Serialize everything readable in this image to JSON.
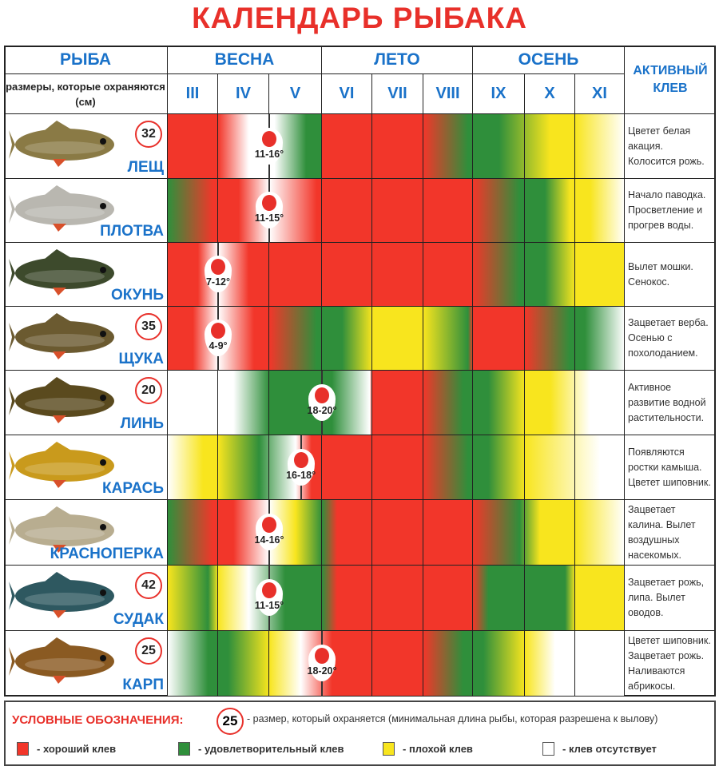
{
  "title": "КАЛЕНДАРЬ РЫБАКА",
  "header": {
    "fish_label": "РЫБА",
    "size_note": "размеры, которые охраняются (см)",
    "seasons": [
      "ВЕСНА",
      "ЛЕТО",
      "ОСЕНЬ"
    ],
    "active_label": "АКТИВНЫЙ КЛЕВ"
  },
  "colors": {
    "R": "#f2362a",
    "G": "#2f8f3b",
    "Y": "#f8e51e",
    "W": "#ffffff",
    "accent": "#e8302a",
    "blue": "#1a72c9"
  },
  "chart_data": {
    "type": "heatmap",
    "title": "КАЛЕНДАРЬ РЫБАКА",
    "months": [
      "III",
      "IV",
      "V",
      "VI",
      "VII",
      "VIII",
      "IX",
      "X",
      "XI"
    ],
    "legend_codes": {
      "R": "хороший клев",
      "G": "удовлетворительный клев",
      "Y": "плохой клев",
      "W": "клев отсутствует"
    },
    "rows": [
      {
        "fish": "ЛЕЩ",
        "limit": "32",
        "color": "#8a7a45",
        "temp": "11-16°",
        "temp_month": 2.0,
        "note": "Цветет белая акация. Колосится рожь.",
        "stops": [
          [
            0,
            "R"
          ],
          [
            1,
            "R"
          ],
          [
            1.6,
            "W"
          ],
          [
            2.1,
            "W"
          ],
          [
            2.7,
            "G"
          ],
          [
            3,
            "G"
          ],
          [
            3,
            "R"
          ],
          [
            5,
            "R"
          ],
          [
            5.9,
            "G"
          ],
          [
            6.5,
            "G"
          ],
          [
            7.5,
            "Y"
          ],
          [
            8,
            "Y"
          ],
          [
            9,
            "W"
          ]
        ]
      },
      {
        "fish": "ПЛОТВА",
        "limit": "",
        "color": "#b9b7b0",
        "temp": "11-15°",
        "temp_month": 2.0,
        "note": "Начало паводка. Просветление и прогрев воды.",
        "stops": [
          [
            0,
            "G"
          ],
          [
            0.9,
            "R"
          ],
          [
            1.4,
            "R"
          ],
          [
            2,
            "W"
          ],
          [
            2.9,
            "R"
          ],
          [
            6,
            "R"
          ],
          [
            6.9,
            "G"
          ],
          [
            7.4,
            "G"
          ],
          [
            7.9,
            "Y"
          ],
          [
            8.3,
            "Y"
          ],
          [
            9,
            "W"
          ]
        ]
      },
      {
        "fish": "ОКУНЬ",
        "limit": "",
        "color": "#3d4a2c",
        "temp": "7-12°",
        "temp_month": 1.0,
        "note": "Вылет мошки. Сенокос.",
        "stops": [
          [
            0,
            "R"
          ],
          [
            0.6,
            "R"
          ],
          [
            1,
            "W"
          ],
          [
            1.6,
            "R"
          ],
          [
            6,
            "R"
          ],
          [
            6.9,
            "G"
          ],
          [
            7.4,
            "G"
          ],
          [
            8,
            "Y"
          ],
          [
            9,
            "Y"
          ]
        ]
      },
      {
        "fish": "ЩУКА",
        "limit": "35",
        "color": "#6b5a30",
        "temp": "4-9°",
        "temp_month": 1.0,
        "note": "Зацветает верба. Осенью с похолоданием.",
        "stops": [
          [
            0,
            "R"
          ],
          [
            0.5,
            "R"
          ],
          [
            1,
            "W"
          ],
          [
            1.7,
            "R"
          ],
          [
            2,
            "R"
          ],
          [
            2.9,
            "G"
          ],
          [
            3.4,
            "G"
          ],
          [
            4,
            "Y"
          ],
          [
            5,
            "Y"
          ],
          [
            5.9,
            "G"
          ],
          [
            6,
            "R"
          ],
          [
            7,
            "R"
          ],
          [
            7.9,
            "G"
          ],
          [
            8.2,
            "G"
          ],
          [
            9,
            "W"
          ]
        ]
      },
      {
        "fish": "ЛИНЬ",
        "limit": "20",
        "color": "#5a4a1e",
        "temp": "18-20°",
        "temp_month": 3.0,
        "note": "Активное развитие водной растительности.",
        "stops": [
          [
            0,
            "W"
          ],
          [
            1.3,
            "W"
          ],
          [
            2,
            "G"
          ],
          [
            3.2,
            "G"
          ],
          [
            3.95,
            "W"
          ],
          [
            4,
            "R"
          ],
          [
            5,
            "R"
          ],
          [
            5.8,
            "G"
          ],
          [
            6.3,
            "G"
          ],
          [
            7,
            "Y"
          ],
          [
            7.5,
            "Y"
          ],
          [
            8.3,
            "W"
          ],
          [
            9,
            "W"
          ]
        ]
      },
      {
        "fish": "КАРАСЬ",
        "limit": "",
        "color": "#c99a1c",
        "temp": "16-18°",
        "temp_month": 2.6,
        "note": "Появляются ростки камыша. Цветет шиповник.",
        "stops": [
          [
            0,
            "W"
          ],
          [
            0.7,
            "Y"
          ],
          [
            1,
            "Y"
          ],
          [
            1.8,
            "G"
          ],
          [
            2.5,
            "W"
          ],
          [
            2.8,
            "R"
          ],
          [
            5,
            "R"
          ],
          [
            5.9,
            "G"
          ],
          [
            6.3,
            "G"
          ],
          [
            7,
            "Y"
          ],
          [
            8.5,
            "W"
          ],
          [
            9,
            "W"
          ]
        ]
      },
      {
        "fish": "КРАСНОПЕРКА",
        "limit": "",
        "color": "#b8ad90",
        "temp": "14-16°",
        "temp_month": 2.0,
        "note": "Зацветает калина. Вылет воздушных насекомых.",
        "stops": [
          [
            0,
            "G"
          ],
          [
            0.9,
            "R"
          ],
          [
            1.3,
            "R"
          ],
          [
            2,
            "W"
          ],
          [
            2.5,
            "Y"
          ],
          [
            3,
            "G"
          ],
          [
            3.3,
            "R"
          ],
          [
            6,
            "R"
          ],
          [
            6.9,
            "G"
          ],
          [
            7.3,
            "Y"
          ],
          [
            8,
            "Y"
          ],
          [
            9,
            "W"
          ]
        ]
      },
      {
        "fish": "СУДАК",
        "limit": "42",
        "color": "#2e5860",
        "temp": "11-15°",
        "temp_month": 2.0,
        "note": "Зацветает рожь, липа. Вылет оводов.",
        "stops": [
          [
            0,
            "Y"
          ],
          [
            0.8,
            "G"
          ],
          [
            1,
            "Y"
          ],
          [
            1.6,
            "W"
          ],
          [
            2.3,
            "G"
          ],
          [
            3,
            "G"
          ],
          [
            3.3,
            "R"
          ],
          [
            6,
            "R"
          ],
          [
            6.3,
            "G"
          ],
          [
            7.8,
            "G"
          ],
          [
            8,
            "Y"
          ],
          [
            9,
            "Y"
          ]
        ]
      },
      {
        "fish": "КАРП",
        "limit": "25",
        "color": "#8a5a22",
        "temp": "18-20°",
        "temp_month": 3.0,
        "note": "Цветет шиповник. Зацветает рожь. Наливаются абрикосы.",
        "stops": [
          [
            0,
            "W"
          ],
          [
            0.8,
            "G"
          ],
          [
            1.2,
            "G"
          ],
          [
            2,
            "Y"
          ],
          [
            2.6,
            "W"
          ],
          [
            3.2,
            "R"
          ],
          [
            5,
            "R"
          ],
          [
            5.8,
            "G"
          ],
          [
            6.2,
            "G"
          ],
          [
            7,
            "Y"
          ],
          [
            7.6,
            "W"
          ],
          [
            9,
            "W"
          ]
        ]
      }
    ]
  },
  "legend": {
    "title": "УСЛОВНЫЕ ОБОЗНАЧЕНИЯ:",
    "sample_limit": "25",
    "limit_desc": "- размер, который охраняется (минимальная длина рыбы, которая разрешена к вылову)",
    "items": [
      {
        "code": "R",
        "label": "- хороший клев"
      },
      {
        "code": "G",
        "label": "- удовлетворительный клев"
      },
      {
        "code": "Y",
        "label": "- плохой клев"
      },
      {
        "code": "W",
        "label": "- клев отсутствует"
      }
    ]
  }
}
